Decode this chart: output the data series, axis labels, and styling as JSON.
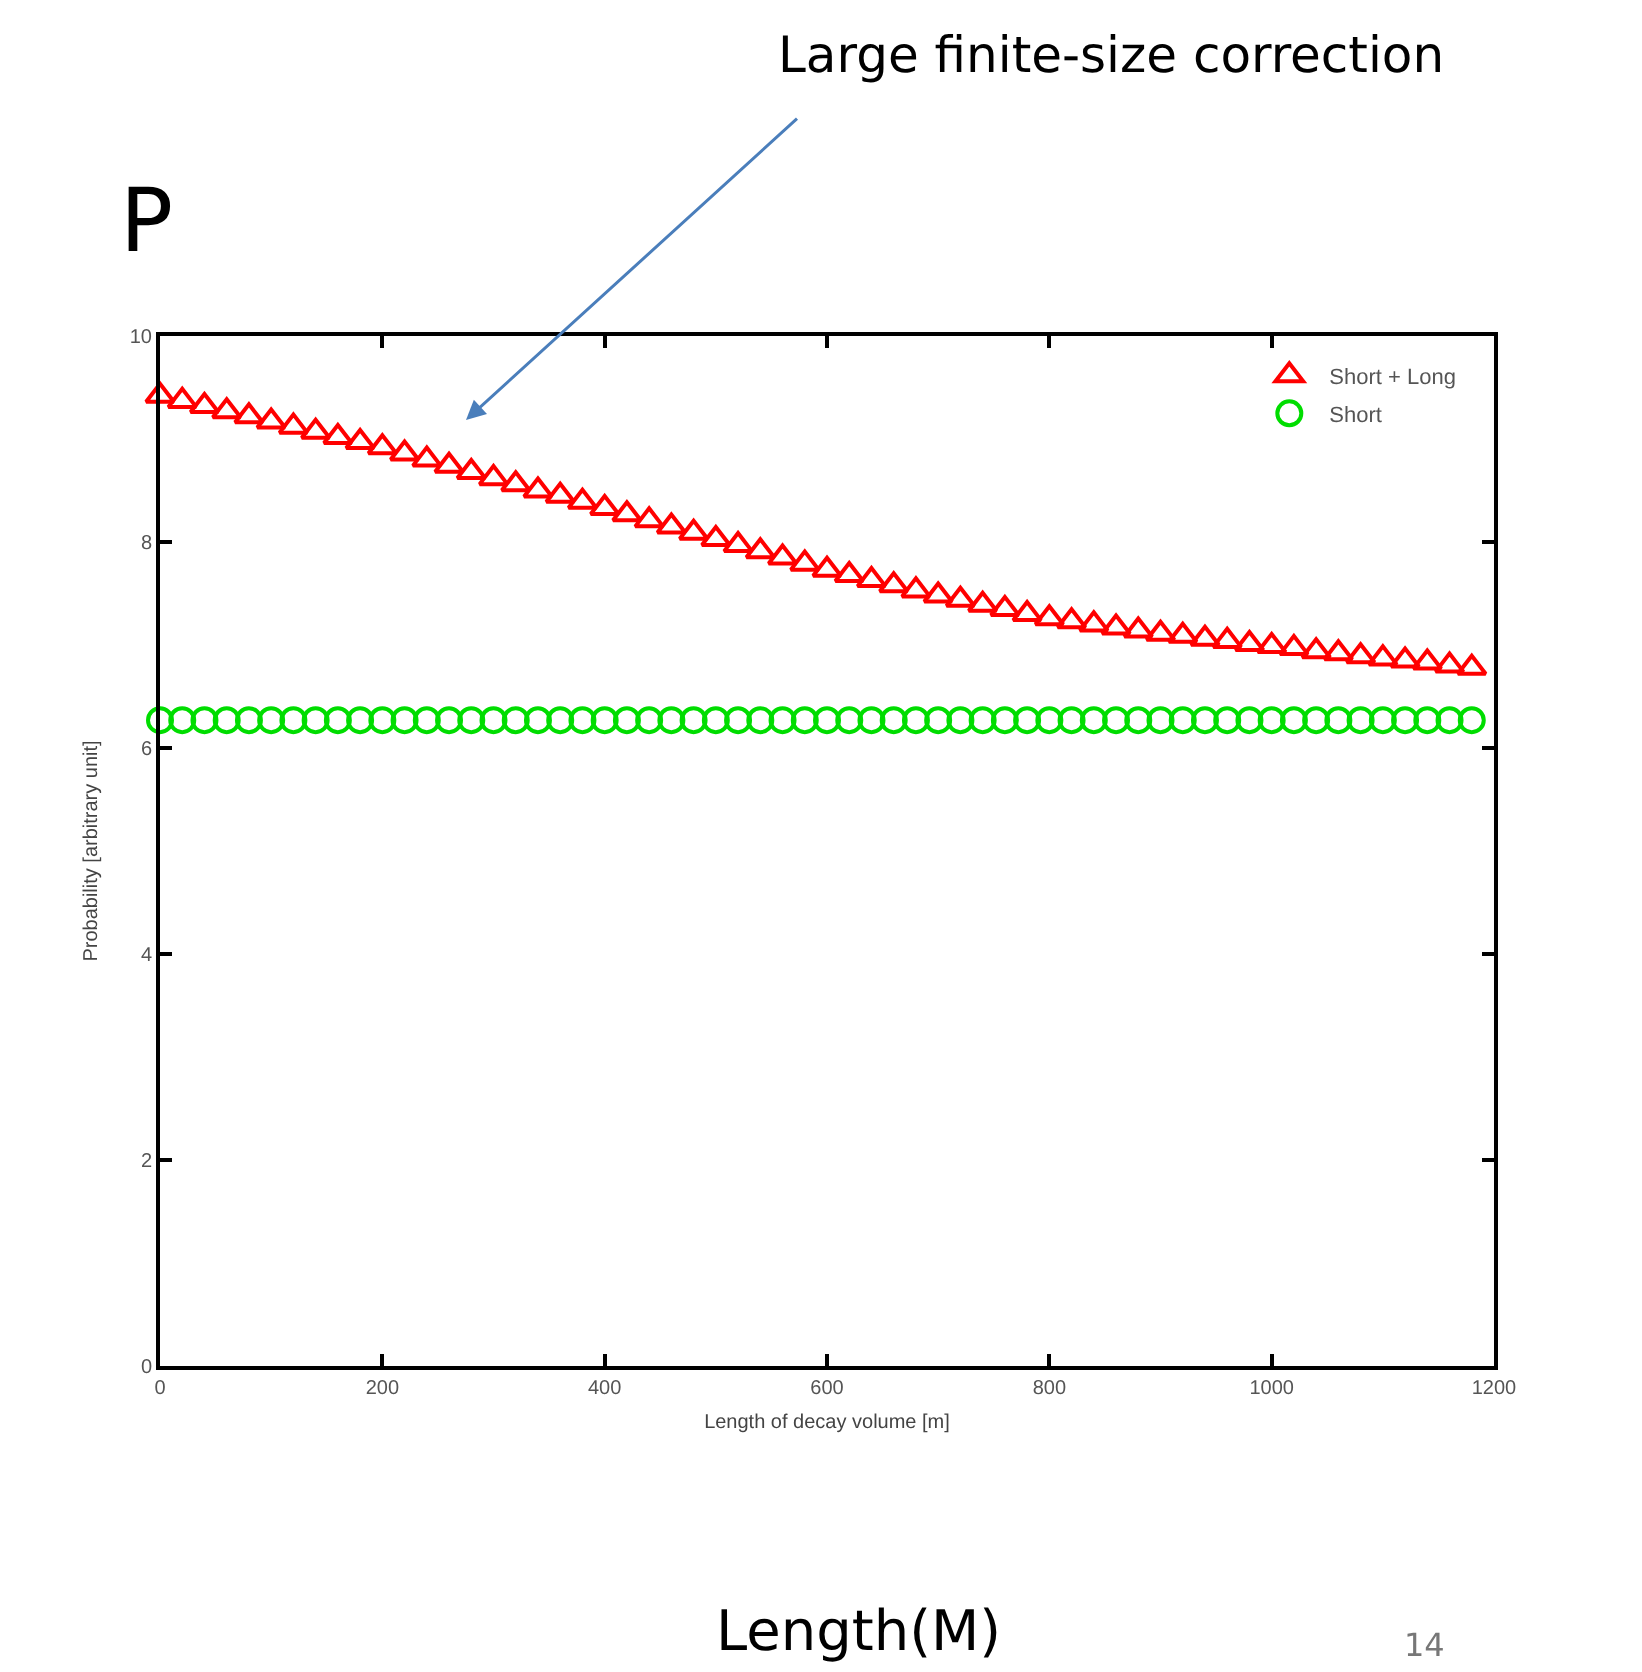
{
  "chart_data": {
    "type": "scatter",
    "title": "P",
    "xlabel": "Length of decay volume [m]",
    "ylabel": "Probability [arbitrary unit]",
    "x": [
      0,
      20,
      40,
      60,
      80,
      100,
      120,
      140,
      160,
      180,
      200,
      220,
      240,
      260,
      280,
      300,
      320,
      340,
      360,
      380,
      400,
      420,
      440,
      460,
      480,
      500,
      520,
      540,
      560,
      580,
      600,
      620,
      640,
      660,
      680,
      700,
      720,
      740,
      760,
      780,
      800,
      820,
      840,
      860,
      880,
      900,
      920,
      940,
      960,
      980,
      1000,
      1020,
      1040,
      1060,
      1080,
      1100,
      1120,
      1140,
      1160,
      1180
    ],
    "series": [
      {
        "name": "Short + Long",
        "color": "#ff0000",
        "marker": "triangle",
        "values": [
          9.42,
          9.37,
          9.32,
          9.27,
          9.22,
          9.17,
          9.12,
          9.07,
          9.02,
          8.97,
          8.92,
          8.86,
          8.8,
          8.74,
          8.68,
          8.62,
          8.56,
          8.5,
          8.45,
          8.39,
          8.33,
          8.27,
          8.21,
          8.15,
          8.09,
          8.03,
          7.97,
          7.91,
          7.85,
          7.79,
          7.73,
          7.68,
          7.63,
          7.58,
          7.53,
          7.48,
          7.44,
          7.39,
          7.35,
          7.3,
          7.26,
          7.23,
          7.2,
          7.17,
          7.14,
          7.11,
          7.09,
          7.06,
          7.04,
          7.01,
          6.99,
          6.97,
          6.94,
          6.92,
          6.89,
          6.87,
          6.85,
          6.83,
          6.8,
          6.78
        ]
      },
      {
        "name": "Short",
        "color": "#00dd00",
        "marker": "circle",
        "values": [
          6.27,
          6.27,
          6.27,
          6.27,
          6.27,
          6.27,
          6.27,
          6.27,
          6.27,
          6.27,
          6.27,
          6.27,
          6.27,
          6.27,
          6.27,
          6.27,
          6.27,
          6.27,
          6.27,
          6.27,
          6.27,
          6.27,
          6.27,
          6.27,
          6.27,
          6.27,
          6.27,
          6.27,
          6.27,
          6.27,
          6.27,
          6.27,
          6.27,
          6.27,
          6.27,
          6.27,
          6.27,
          6.27,
          6.27,
          6.27,
          6.27,
          6.27,
          6.27,
          6.27,
          6.27,
          6.27,
          6.27,
          6.27,
          6.27,
          6.27,
          6.27,
          6.27,
          6.27,
          6.27,
          6.27,
          6.27,
          6.27,
          6.27,
          6.27,
          6.27
        ]
      }
    ],
    "xlim": [
      0,
      1200
    ],
    "xticks": [
      0,
      200,
      400,
      600,
      800,
      1000,
      1200
    ],
    "ylim": [
      0,
      10
    ],
    "yticks": [
      0,
      2,
      4,
      6,
      8,
      10
    ],
    "grid": false,
    "legend": "top right",
    "annotations": [
      "Large finite-size correction",
      "Length(M)",
      "14"
    ]
  }
}
